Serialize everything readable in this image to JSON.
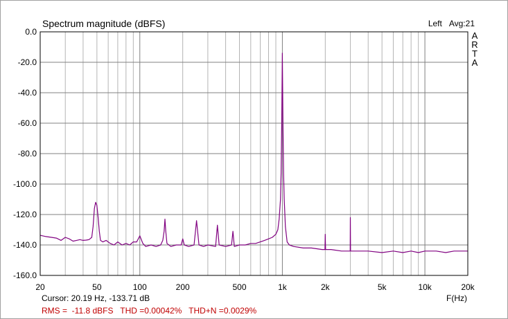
{
  "window": {
    "title": "Spectrum magnitude (dBFS)",
    "channel": "Left",
    "averaging": "Avg:21",
    "logo_letters": [
      "A",
      "R",
      "T",
      "A"
    ]
  },
  "footer": {
    "cursor": "Cursor: 20.19 Hz, -133.71 dB",
    "x_unit": "F(Hz)",
    "rms": "RMS =  -11.8 dBFS",
    "thd": "THD =0.00042%",
    "thdn": "THD+N =0.0029%"
  },
  "colors": {
    "trace": "#800080",
    "grid": "#b4b4b4",
    "grid_major": "#808080",
    "stats_text": "#c00000"
  },
  "chart_data": {
    "type": "line",
    "title": "Spectrum magnitude (dBFS)",
    "xlabel": "F(Hz)",
    "ylabel": "",
    "x_scale": "log",
    "xlim": [
      20,
      20000
    ],
    "ylim": [
      -160,
      0
    ],
    "grid": true,
    "y_ticks": [
      0,
      -20,
      -40,
      -60,
      -80,
      -100,
      -120,
      -140,
      -160
    ],
    "y_tick_labels": [
      "0.0",
      "-20.0",
      "-40.0",
      "-60.0",
      "-80.0",
      "-100.0",
      "-120.0",
      "-140.0",
      "-160.0"
    ],
    "x_ticks": [
      20,
      50,
      100,
      200,
      500,
      1000,
      2000,
      5000,
      10000,
      20000
    ],
    "x_tick_labels": [
      "20",
      "50",
      "100",
      "200",
      "500",
      "1k",
      "2k",
      "5k",
      "10k",
      "20k"
    ],
    "series": [
      {
        "x": [
          20,
          22,
          24,
          26,
          28,
          30,
          32,
          34,
          36,
          38,
          40,
          42,
          44,
          46,
          47,
          48,
          49,
          50,
          51,
          52,
          53,
          55,
          58,
          62,
          66,
          70,
          75,
          80,
          85,
          90,
          95,
          100,
          105,
          110,
          120,
          130,
          140,
          145,
          148,
          150,
          152,
          155,
          165,
          180,
          195,
          200,
          205,
          220,
          240,
          250,
          260,
          280,
          300,
          340,
          350,
          360,
          400,
          440,
          450,
          460,
          500,
          550,
          600,
          650,
          700,
          750,
          800,
          850,
          900,
          930,
          950,
          970,
          980,
          990,
          1000,
          1010,
          1020,
          1030,
          1050,
          1080,
          1120,
          1200,
          1400,
          1600,
          1900,
          1990,
          2000,
          2010,
          2200,
          2600,
          2990,
          3000,
          3010,
          3500,
          4000,
          5000,
          6000,
          7000,
          8000,
          9000,
          10000,
          12000,
          14000,
          16000,
          18000,
          19000,
          20000
        ],
        "values": [
          -133.7,
          -134.5,
          -135,
          -135.5,
          -137,
          -135,
          -136,
          -137.5,
          -137,
          -136.5,
          -137,
          -136.8,
          -136.5,
          -135,
          -128,
          -116,
          -112,
          -114,
          -122,
          -131,
          -137,
          -138,
          -137,
          -139,
          -140,
          -138,
          -140,
          -139,
          -140,
          -138,
          -138,
          -134,
          -139,
          -141,
          -140,
          -141,
          -140,
          -137,
          -131,
          -123,
          -131,
          -139,
          -141,
          -140,
          -140,
          -136,
          -140,
          -141,
          -140,
          -124,
          -140,
          -141,
          -140,
          -141,
          -127,
          -140,
          -141,
          -140,
          -131,
          -141,
          -140,
          -140,
          -139,
          -139,
          -138,
          -137,
          -136,
          -135,
          -133,
          -130,
          -123,
          -110,
          -93,
          -60,
          -14,
          -60,
          -93,
          -110,
          -128,
          -138,
          -140,
          -141,
          -142,
          -142,
          -143,
          -143,
          -133,
          -143,
          -143,
          -144,
          -144,
          -122,
          -144,
          -144,
          -144,
          -145,
          -144,
          -145,
          -144,
          -145,
          -144,
          -144,
          -145,
          -144,
          -144,
          -144,
          -144
        ]
      }
    ]
  }
}
